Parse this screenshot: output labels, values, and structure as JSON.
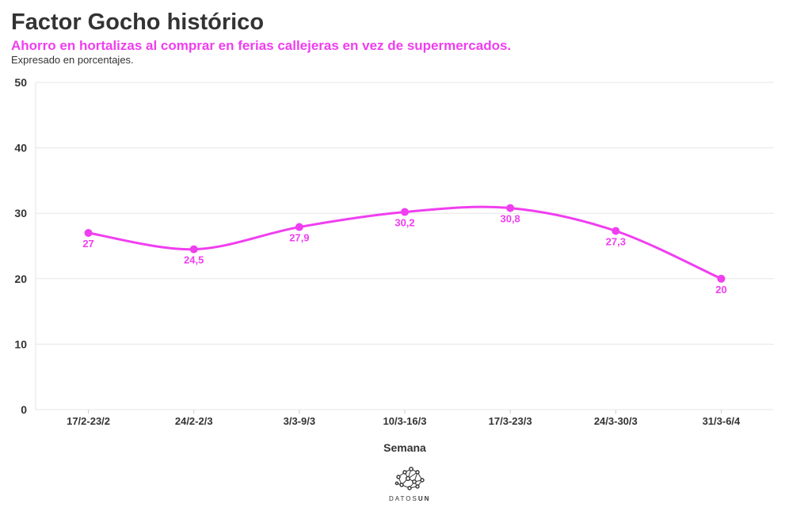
{
  "header": {
    "title": "Factor Gocho histórico",
    "subtitle": "Ahorro en hortalizas al comprar en ferias callejeras en vez de supermercados.",
    "note": "Expresado en porcentajes."
  },
  "chart_data": {
    "type": "line",
    "title": "Factor Gocho histórico",
    "subtitle": "Ahorro en hortalizas al comprar en ferias callejeras en vez de supermercados.",
    "xlabel": "Semana",
    "ylabel": "",
    "categories": [
      "17/2-23/2",
      "24/2-2/3",
      "3/3-9/3",
      "10/3-16/3",
      "17/3-23/3",
      "24/3-30/3",
      "31/3-6/4"
    ],
    "values": [
      27,
      24.5,
      27.9,
      30.2,
      30.8,
      27.3,
      20
    ],
    "data_labels": [
      "27",
      "24,5",
      "27,9",
      "30,2",
      "30,8",
      "27,3",
      "20"
    ],
    "ylim": [
      0,
      50
    ],
    "yticks": [
      0,
      10,
      20,
      30,
      40,
      50
    ],
    "grid": true,
    "smooth": true,
    "color": "#f03ef0"
  },
  "logo": {
    "text_light": "DATOS",
    "text_bold": "UN"
  }
}
